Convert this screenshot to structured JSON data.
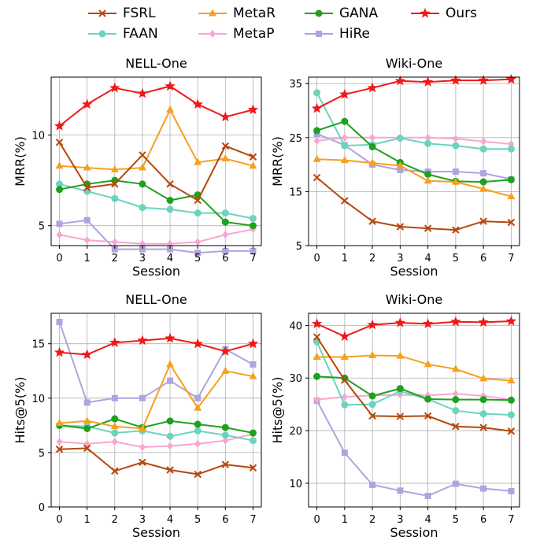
{
  "legend": [
    {
      "key": "fsrl",
      "name": "FSRL",
      "color": "#b5470c",
      "marker": "x"
    },
    {
      "key": "metar",
      "name": "MetaR",
      "color": "#f5a020",
      "marker": "triangle"
    },
    {
      "key": "gana",
      "name": "GANA",
      "color": "#1fa01f",
      "marker": "circle"
    },
    {
      "key": "ours",
      "name": "Ours",
      "color": "#f01818",
      "marker": "star"
    },
    {
      "key": "faan",
      "name": "FAAN",
      "color": "#6cd3be",
      "marker": "circle"
    },
    {
      "key": "metap",
      "name": "MetaP",
      "color": "#f7a7cf",
      "marker": "diamond"
    },
    {
      "key": "hire",
      "name": "HiRe",
      "color": "#ada4e0",
      "marker": "square"
    }
  ],
  "chart_data": [
    {
      "type": "line",
      "title": "NELL-One",
      "xlabel": "Session",
      "ylabel": "MRR(%)",
      "x": [
        0,
        1,
        2,
        3,
        4,
        5,
        6,
        7
      ],
      "xlim": [
        -0.3,
        7.3
      ],
      "ylim": [
        3.9,
        13.2
      ],
      "yticks": [
        5,
        10
      ],
      "grid": true,
      "series": [
        {
          "name": "FSRL",
          "values": [
            9.6,
            7.1,
            7.3,
            8.9,
            7.3,
            6.4,
            9.4,
            8.8
          ]
        },
        {
          "name": "MetaR",
          "values": [
            8.3,
            8.2,
            8.1,
            8.2,
            11.4,
            8.5,
            8.7,
            8.3
          ]
        },
        {
          "name": "GANA",
          "values": [
            7.0,
            7.3,
            7.5,
            7.3,
            6.4,
            6.7,
            5.2,
            5.0
          ]
        },
        {
          "name": "Ours",
          "values": [
            10.5,
            11.7,
            12.6,
            12.3,
            12.7,
            11.7,
            11.0,
            11.4
          ]
        },
        {
          "name": "FAAN",
          "values": [
            7.3,
            6.9,
            6.5,
            6.0,
            5.9,
            5.7,
            5.7,
            5.4
          ]
        },
        {
          "name": "MetaP",
          "values": [
            4.5,
            4.2,
            4.1,
            4.0,
            4.0,
            4.1,
            4.5,
            4.8
          ]
        },
        {
          "name": "HiRe",
          "values": [
            5.1,
            5.3,
            3.7,
            3.7,
            3.7,
            3.5,
            3.6,
            3.6
          ]
        }
      ]
    },
    {
      "type": "line",
      "title": "Wiki-One",
      "xlabel": "Session",
      "ylabel": "MRR(%)",
      "x": [
        0,
        1,
        2,
        3,
        4,
        5,
        6,
        7
      ],
      "xlim": [
        -0.3,
        7.3
      ],
      "ylim": [
        5,
        36.2
      ],
      "yticks": [
        5,
        15,
        25,
        35
      ],
      "grid": true,
      "series": [
        {
          "name": "FSRL",
          "values": [
            17.6,
            13.3,
            9.5,
            8.5,
            8.2,
            7.9,
            9.5,
            9.3
          ]
        },
        {
          "name": "MetaR",
          "values": [
            21.0,
            20.8,
            20.3,
            19.8,
            17.0,
            16.8,
            15.5,
            14.1
          ]
        },
        {
          "name": "GANA",
          "values": [
            26.3,
            28.0,
            23.3,
            20.4,
            18.2,
            16.9,
            16.8,
            17.2
          ]
        },
        {
          "name": "Ours",
          "values": [
            30.4,
            33.0,
            34.2,
            35.5,
            35.3,
            35.6,
            35.6,
            35.8
          ]
        },
        {
          "name": "FAAN",
          "values": [
            33.3,
            23.5,
            23.7,
            24.9,
            23.9,
            23.5,
            22.9,
            22.9
          ]
        },
        {
          "name": "MetaP",
          "values": [
            24.4,
            25.0,
            25.0,
            25.0,
            25.0,
            24.8,
            24.3,
            23.8
          ]
        },
        {
          "name": "HiRe",
          "values": [
            25.7,
            23.6,
            20.0,
            19.0,
            18.7,
            18.7,
            18.4,
            17.3
          ]
        }
      ]
    },
    {
      "type": "line",
      "title": "NELL-One",
      "xlabel": "Session",
      "ylabel": "Hits@5(%)",
      "x": [
        0,
        1,
        2,
        3,
        4,
        5,
        6,
        7
      ],
      "xlim": [
        -0.3,
        7.3
      ],
      "ylim": [
        0,
        17.8
      ],
      "yticks": [
        0,
        5,
        10,
        15
      ],
      "grid": true,
      "series": [
        {
          "name": "FSRL",
          "values": [
            5.3,
            5.4,
            3.3,
            4.1,
            3.4,
            3.0,
            3.9,
            3.6
          ]
        },
        {
          "name": "MetaR",
          "values": [
            7.7,
            7.9,
            7.4,
            7.2,
            13.1,
            9.1,
            12.5,
            12.0
          ]
        },
        {
          "name": "GANA",
          "values": [
            7.5,
            7.2,
            8.1,
            7.3,
            7.9,
            7.6,
            7.3,
            6.8
          ]
        },
        {
          "name": "Ours",
          "values": [
            14.2,
            14.0,
            15.1,
            15.3,
            15.5,
            15.0,
            14.3,
            15.0
          ]
        },
        {
          "name": "FAAN",
          "values": [
            7.5,
            7.4,
            6.8,
            7.0,
            6.5,
            7.0,
            6.6,
            6.1
          ]
        },
        {
          "name": "MetaP",
          "values": [
            6.0,
            5.8,
            6.0,
            5.5,
            5.6,
            5.8,
            6.1,
            6.7
          ]
        },
        {
          "name": "HiRe",
          "values": [
            17.0,
            9.6,
            10.0,
            10.0,
            11.6,
            10.0,
            14.5,
            13.1
          ]
        }
      ]
    },
    {
      "type": "line",
      "title": "Wiki-One",
      "xlabel": "Session",
      "ylabel": "Hits@5(%)",
      "x": [
        0,
        1,
        2,
        3,
        4,
        5,
        6,
        7
      ],
      "xlim": [
        -0.3,
        7.3
      ],
      "ylim": [
        5.5,
        42.3
      ],
      "yticks": [
        10,
        20,
        30,
        40
      ],
      "grid": true,
      "series": [
        {
          "name": "FSRL",
          "values": [
            37.8,
            29.6,
            22.8,
            22.7,
            22.8,
            20.8,
            20.6,
            19.9
          ]
        },
        {
          "name": "MetaR",
          "values": [
            34.0,
            34.0,
            34.3,
            34.2,
            32.6,
            31.7,
            29.9,
            29.5
          ]
        },
        {
          "name": "GANA",
          "values": [
            30.3,
            30.0,
            26.6,
            28.0,
            26.0,
            25.9,
            25.9,
            25.8
          ]
        },
        {
          "name": "Ours",
          "values": [
            40.3,
            37.9,
            40.1,
            40.5,
            40.3,
            40.7,
            40.6,
            40.8
          ]
        },
        {
          "name": "FAAN",
          "values": [
            36.9,
            24.9,
            25.0,
            27.5,
            26.0,
            23.8,
            23.2,
            23.0
          ]
        },
        {
          "name": "MetaP",
          "values": [
            25.9,
            26.4,
            26.7,
            26.8,
            26.7,
            27.0,
            26.6,
            25.9
          ]
        },
        {
          "name": "HiRe",
          "values": [
            25.7,
            15.8,
            9.7,
            8.6,
            7.6,
            9.9,
            9.0,
            8.5
          ]
        }
      ]
    }
  ]
}
